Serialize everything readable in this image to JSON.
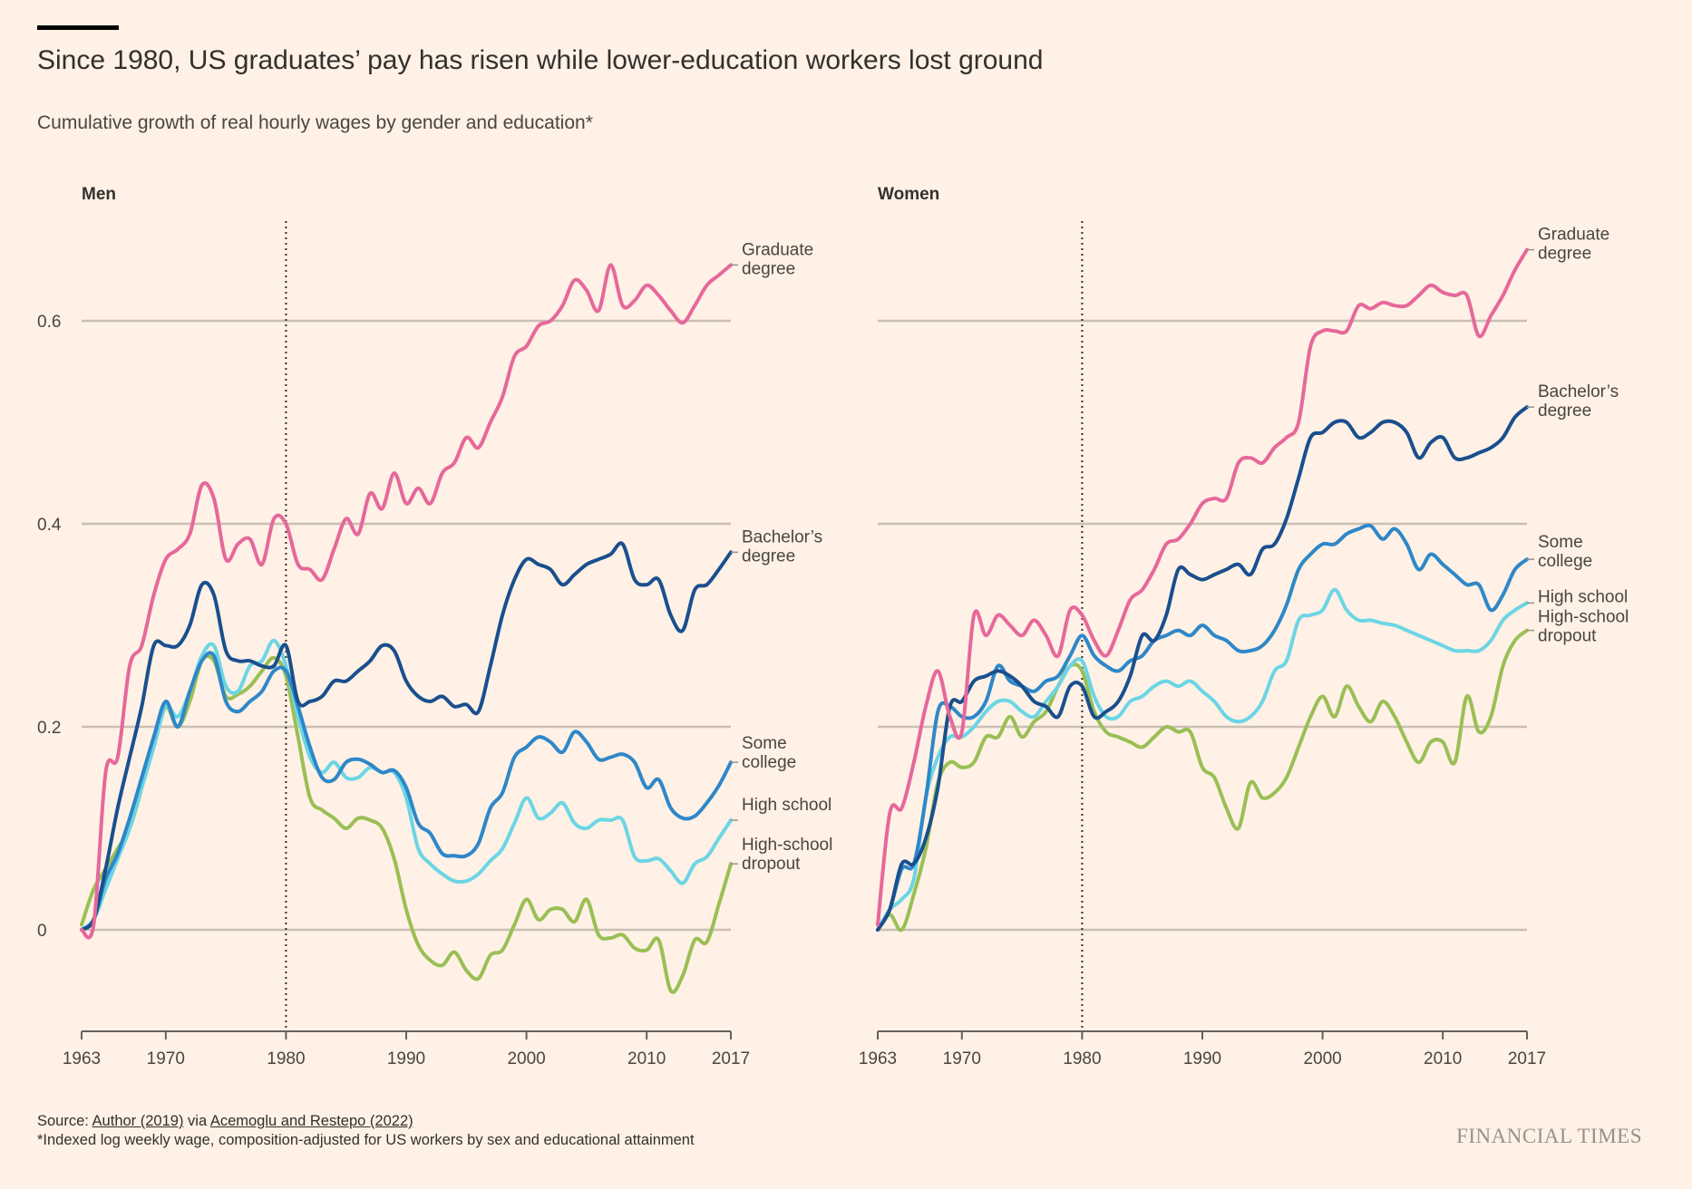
{
  "title": "Since 1980, US graduates’ pay has risen while lower-education workers lost ground",
  "subtitle": "Cumulative growth of real hourly wages by gender and education*",
  "source": {
    "prefix": "Source: ",
    "link1": "Author (2019)",
    "mid": " via ",
    "link2": "Acemoglu and Restepo (2022)"
  },
  "footnote": "*Indexed log weekly wage, composition-adjusted for US workers by sex and educational attainment",
  "brand": "FINANCIAL TIMES",
  "colors": {
    "Graduate degree": "#E6689B",
    "Bachelor's degree": "#1A4F8E",
    "Some college": "#2E87C8",
    "High school": "#6BD5E5",
    "High-school dropout": "#9ABF55",
    "grid": "#C9BFB4",
    "axis": "#66605C"
  },
  "chart_data": [
    {
      "type": "line",
      "panel_title": "Men",
      "x": [
        1963,
        1964,
        1965,
        1966,
        1967,
        1968,
        1969,
        1970,
        1971,
        1972,
        1973,
        1974,
        1975,
        1976,
        1977,
        1978,
        1979,
        1980,
        1981,
        1982,
        1983,
        1984,
        1985,
        1986,
        1987,
        1988,
        1989,
        1990,
        1991,
        1992,
        1993,
        1994,
        1995,
        1996,
        1997,
        1998,
        1999,
        2000,
        2001,
        2002,
        2003,
        2004,
        2005,
        2006,
        2007,
        2008,
        2009,
        2010,
        2011,
        2012,
        2013,
        2014,
        2015,
        2016,
        2017
      ],
      "xlim": [
        1963,
        2017
      ],
      "ylim": [
        -0.1,
        0.7
      ],
      "xticks": [
        1963,
        1970,
        1980,
        1990,
        2000,
        2010,
        2017
      ],
      "yticks": [
        0,
        0.2,
        0.4,
        0.6
      ],
      "ytick_labels": [
        "0",
        "0.2",
        "0.4",
        "0.6"
      ],
      "vline": 1980,
      "series": [
        {
          "name": "Graduate degree",
          "label_lines": [
            "Graduate",
            "degree"
          ],
          "values": [
            0,
            0.005,
            0.155,
            0.17,
            0.26,
            0.28,
            0.33,
            0.365,
            0.375,
            0.39,
            0.438,
            0.425,
            0.365,
            0.38,
            0.385,
            0.36,
            0.405,
            0.4,
            0.36,
            0.355,
            0.345,
            0.375,
            0.405,
            0.39,
            0.43,
            0.415,
            0.45,
            0.42,
            0.435,
            0.42,
            0.45,
            0.46,
            0.485,
            0.475,
            0.5,
            0.525,
            0.565,
            0.575,
            0.595,
            0.6,
            0.615,
            0.64,
            0.63,
            0.61,
            0.655,
            0.615,
            0.62,
            0.635,
            0.625,
            0.61,
            0.598,
            0.615,
            0.635,
            0.645,
            0.655
          ]
        },
        {
          "name": "Bachelor's degree",
          "label_lines": [
            "Bachelor’s",
            "degree"
          ],
          "values": [
            0,
            0.01,
            0.06,
            0.12,
            0.17,
            0.22,
            0.28,
            0.28,
            0.28,
            0.3,
            0.34,
            0.33,
            0.275,
            0.265,
            0.265,
            0.26,
            0.26,
            0.28,
            0.225,
            0.225,
            0.23,
            0.245,
            0.245,
            0.255,
            0.265,
            0.28,
            0.275,
            0.245,
            0.23,
            0.225,
            0.23,
            0.22,
            0.222,
            0.215,
            0.26,
            0.31,
            0.345,
            0.365,
            0.36,
            0.355,
            0.34,
            0.35,
            0.36,
            0.365,
            0.37,
            0.38,
            0.345,
            0.34,
            0.345,
            0.31,
            0.295,
            0.335,
            0.34,
            0.355,
            0.372
          ]
        },
        {
          "name": "Some college",
          "label_lines": [
            "Some",
            "college"
          ],
          "values": [
            0,
            0.01,
            0.05,
            0.075,
            0.11,
            0.15,
            0.19,
            0.225,
            0.2,
            0.235,
            0.265,
            0.27,
            0.225,
            0.215,
            0.225,
            0.235,
            0.255,
            0.255,
            0.22,
            0.18,
            0.15,
            0.148,
            0.165,
            0.168,
            0.163,
            0.155,
            0.157,
            0.14,
            0.105,
            0.095,
            0.075,
            0.073,
            0.073,
            0.085,
            0.12,
            0.135,
            0.17,
            0.18,
            0.19,
            0.185,
            0.175,
            0.195,
            0.185,
            0.168,
            0.17,
            0.173,
            0.165,
            0.14,
            0.148,
            0.12,
            0.11,
            0.112,
            0.125,
            0.142,
            0.165
          ]
        },
        {
          "name": "High school",
          "label_lines": [
            "High school"
          ],
          "values": [
            0,
            0.01,
            0.04,
            0.07,
            0.1,
            0.14,
            0.18,
            0.22,
            0.21,
            0.235,
            0.27,
            0.28,
            0.24,
            0.235,
            0.26,
            0.265,
            0.285,
            0.26,
            0.21,
            0.17,
            0.155,
            0.165,
            0.15,
            0.15,
            0.16,
            0.155,
            0.155,
            0.13,
            0.08,
            0.065,
            0.055,
            0.048,
            0.048,
            0.055,
            0.068,
            0.08,
            0.105,
            0.13,
            0.11,
            0.115,
            0.125,
            0.105,
            0.1,
            0.108,
            0.108,
            0.108,
            0.072,
            0.068,
            0.07,
            0.058,
            0.046,
            0.065,
            0.072,
            0.09,
            0.108
          ]
        },
        {
          "name": "High-school dropout",
          "label_lines": [
            "High-school",
            "dropout"
          ],
          "values": [
            0.005,
            0.04,
            0.06,
            0.08,
            0.1,
            0.14,
            0.19,
            0.22,
            0.2,
            0.225,
            0.265,
            0.265,
            0.23,
            0.232,
            0.24,
            0.255,
            0.268,
            0.25,
            0.19,
            0.13,
            0.118,
            0.11,
            0.1,
            0.11,
            0.108,
            0.1,
            0.07,
            0.02,
            -0.015,
            -0.03,
            -0.035,
            -0.022,
            -0.04,
            -0.048,
            -0.025,
            -0.02,
            0.005,
            0.03,
            0.01,
            0.02,
            0.02,
            0.008,
            0.03,
            -0.005,
            -0.008,
            -0.005,
            -0.018,
            -0.02,
            -0.01,
            -0.06,
            -0.045,
            -0.01,
            -0.012,
            0.025,
            0.065
          ]
        }
      ]
    },
    {
      "type": "line",
      "panel_title": "Women",
      "x": [
        1963,
        1964,
        1965,
        1966,
        1967,
        1968,
        1969,
        1970,
        1971,
        1972,
        1973,
        1974,
        1975,
        1976,
        1977,
        1978,
        1979,
        1980,
        1981,
        1982,
        1983,
        1984,
        1985,
        1986,
        1987,
        1988,
        1989,
        1990,
        1991,
        1992,
        1993,
        1994,
        1995,
        1996,
        1997,
        1998,
        1999,
        2000,
        2001,
        2002,
        2003,
        2004,
        2005,
        2006,
        2007,
        2008,
        2009,
        2010,
        2011,
        2012,
        2013,
        2014,
        2015,
        2016,
        2017
      ],
      "xlim": [
        1963,
        2017
      ],
      "ylim": [
        -0.1,
        0.7
      ],
      "xticks": [
        1963,
        1970,
        1980,
        1990,
        2000,
        2010,
        2017
      ],
      "yticks": [
        0,
        0.2,
        0.4,
        0.6
      ],
      "vline": 1980,
      "series": [
        {
          "name": "Graduate degree",
          "label_lines": [
            "Graduate",
            "degree"
          ],
          "values": [
            0.005,
            0.115,
            0.12,
            0.165,
            0.22,
            0.255,
            0.21,
            0.195,
            0.31,
            0.29,
            0.31,
            0.3,
            0.29,
            0.305,
            0.29,
            0.27,
            0.315,
            0.31,
            0.285,
            0.27,
            0.295,
            0.325,
            0.335,
            0.355,
            0.38,
            0.385,
            0.4,
            0.42,
            0.425,
            0.425,
            0.46,
            0.465,
            0.46,
            0.475,
            0.485,
            0.5,
            0.575,
            0.59,
            0.59,
            0.59,
            0.615,
            0.612,
            0.618,
            0.615,
            0.615,
            0.625,
            0.635,
            0.628,
            0.625,
            0.625,
            0.585,
            0.605,
            0.625,
            0.65,
            0.67
          ]
        },
        {
          "name": "Bachelor's degree",
          "label_lines": [
            "Bachelor’s",
            "degree"
          ],
          "values": [
            0,
            0.02,
            0.065,
            0.065,
            0.09,
            0.14,
            0.22,
            0.225,
            0.245,
            0.25,
            0.255,
            0.25,
            0.24,
            0.225,
            0.22,
            0.21,
            0.24,
            0.24,
            0.21,
            0.215,
            0.225,
            0.25,
            0.29,
            0.285,
            0.31,
            0.355,
            0.35,
            0.345,
            0.35,
            0.355,
            0.36,
            0.35,
            0.375,
            0.38,
            0.405,
            0.445,
            0.485,
            0.49,
            0.5,
            0.5,
            0.485,
            0.49,
            0.5,
            0.5,
            0.49,
            0.465,
            0.48,
            0.485,
            0.465,
            0.465,
            0.47,
            0.475,
            0.485,
            0.505,
            0.515
          ]
        },
        {
          "name": "Some college",
          "label_lines": [
            "Some",
            "college"
          ],
          "values": [
            0,
            0.02,
            0.06,
            0.065,
            0.13,
            0.215,
            0.22,
            0.21,
            0.21,
            0.225,
            0.26,
            0.245,
            0.24,
            0.235,
            0.245,
            0.25,
            0.27,
            0.29,
            0.27,
            0.26,
            0.255,
            0.265,
            0.27,
            0.285,
            0.29,
            0.295,
            0.29,
            0.3,
            0.29,
            0.285,
            0.275,
            0.275,
            0.28,
            0.295,
            0.32,
            0.355,
            0.37,
            0.38,
            0.38,
            0.39,
            0.395,
            0.398,
            0.385,
            0.395,
            0.38,
            0.355,
            0.37,
            0.36,
            0.35,
            0.34,
            0.34,
            0.315,
            0.33,
            0.355,
            0.365
          ]
        },
        {
          "name": "High school",
          "label_lines": [
            "High school"
          ],
          "values": [
            0,
            0.02,
            0.03,
            0.05,
            0.13,
            0.17,
            0.19,
            0.19,
            0.2,
            0.215,
            0.225,
            0.225,
            0.215,
            0.21,
            0.225,
            0.24,
            0.26,
            0.265,
            0.23,
            0.21,
            0.21,
            0.225,
            0.23,
            0.24,
            0.245,
            0.24,
            0.245,
            0.235,
            0.225,
            0.21,
            0.205,
            0.21,
            0.225,
            0.255,
            0.265,
            0.305,
            0.31,
            0.315,
            0.335,
            0.315,
            0.305,
            0.305,
            0.302,
            0.3,
            0.295,
            0.29,
            0.285,
            0.28,
            0.275,
            0.275,
            0.275,
            0.285,
            0.305,
            0.315,
            0.322
          ]
        },
        {
          "name": "High-school dropout",
          "label_lines": [
            "High-school",
            "dropout"
          ],
          "values": [
            0,
            0.015,
            0.0,
            0.035,
            0.08,
            0.145,
            0.165,
            0.16,
            0.165,
            0.19,
            0.19,
            0.21,
            0.19,
            0.205,
            0.215,
            0.24,
            0.26,
            0.255,
            0.215,
            0.195,
            0.19,
            0.185,
            0.18,
            0.19,
            0.2,
            0.195,
            0.195,
            0.16,
            0.15,
            0.12,
            0.1,
            0.145,
            0.13,
            0.135,
            0.15,
            0.18,
            0.21,
            0.23,
            0.21,
            0.24,
            0.22,
            0.205,
            0.225,
            0.21,
            0.185,
            0.165,
            0.185,
            0.185,
            0.165,
            0.23,
            0.195,
            0.21,
            0.26,
            0.285,
            0.295
          ]
        }
      ]
    }
  ]
}
